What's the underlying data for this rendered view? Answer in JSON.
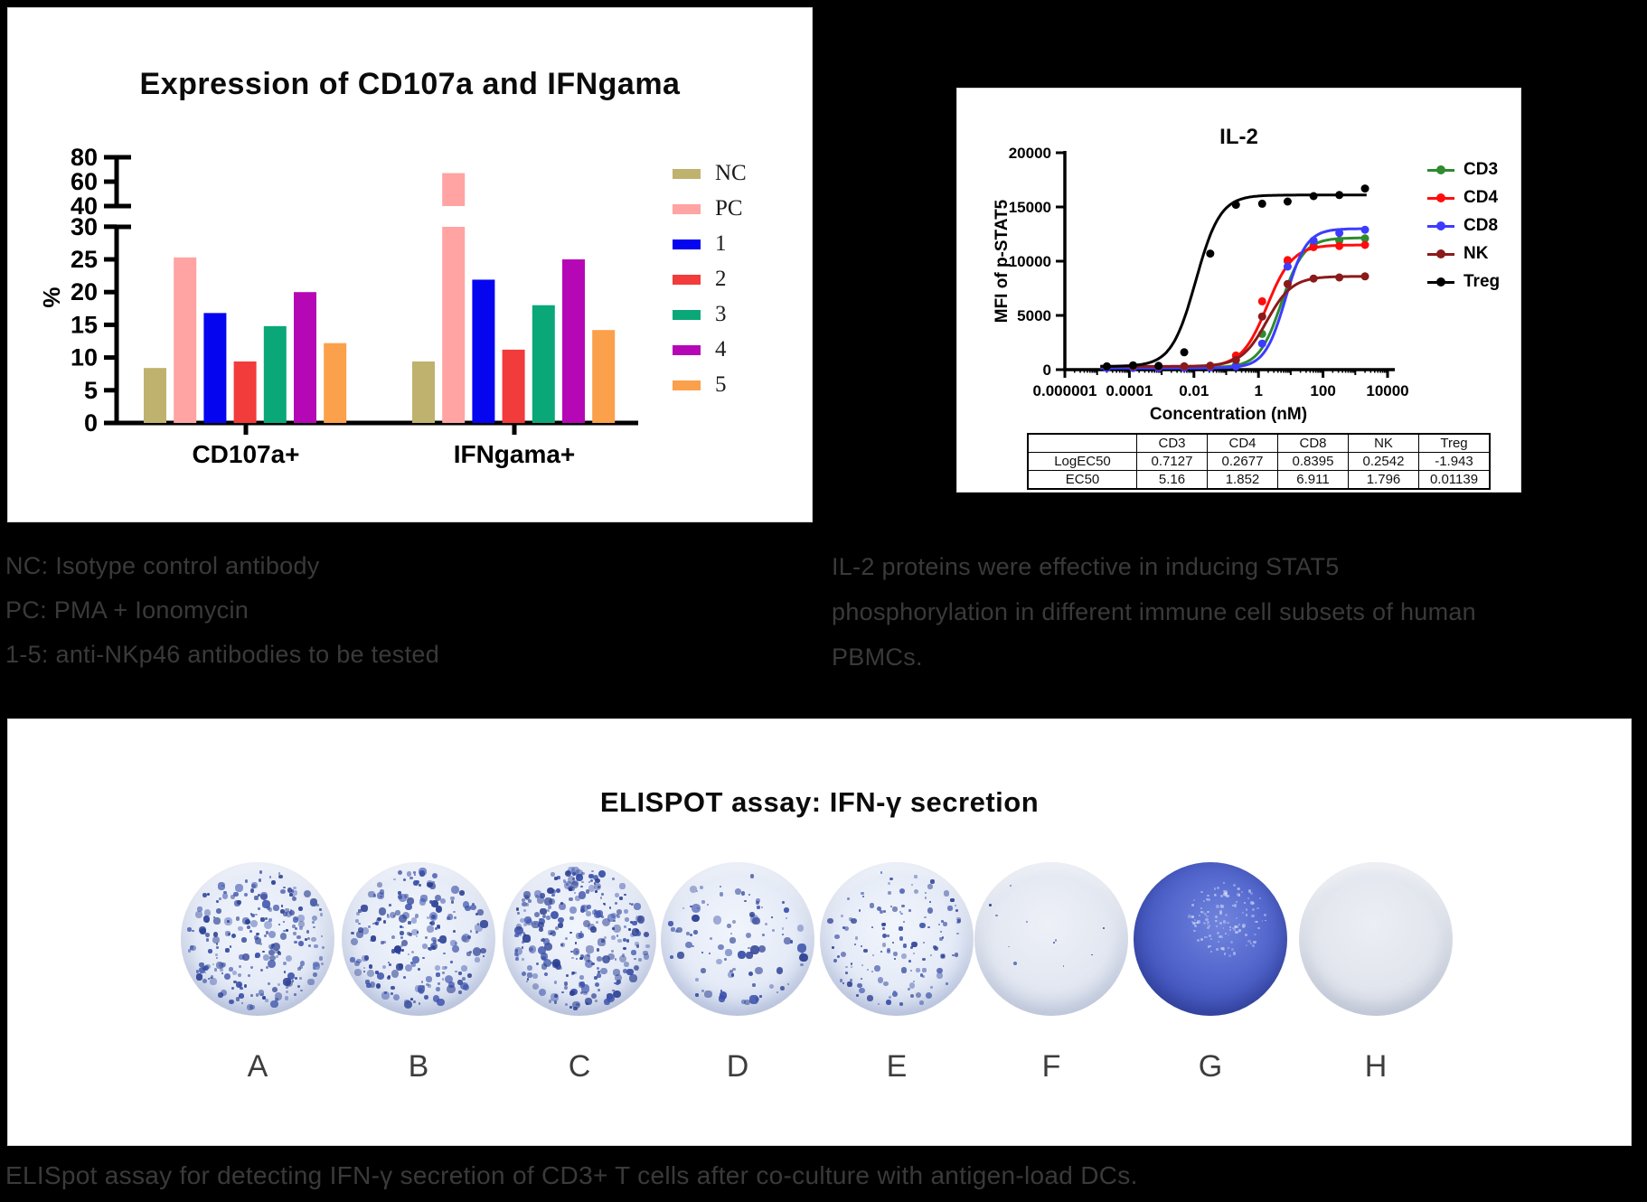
{
  "bar_panel": {
    "title": "Expression of CD107a and IFNgama"
  },
  "curve_panel": {
    "title": "IL-2"
  },
  "chart_data": [
    {
      "type": "bar",
      "title": "Expression of CD107a and IFNgama",
      "ylabel": "%",
      "yticks_lower": [
        0,
        5,
        10,
        15,
        20,
        25,
        30
      ],
      "axis_break": {
        "lower_max": 30,
        "upper_ticks": [
          40,
          60,
          80
        ]
      },
      "ylim": [
        0,
        80
      ],
      "grid": false,
      "legend_position": "right",
      "categories": [
        "CD107a+",
        "IFNgama+"
      ],
      "series": [
        {
          "name": "NC",
          "color": "#bfb26e",
          "values": [
            8.4,
            9.4
          ]
        },
        {
          "name": "PC",
          "color": "#ffa3a3",
          "values": [
            25.3,
            67.0
          ]
        },
        {
          "name": "1",
          "color": "#0505f0",
          "values": [
            16.8,
            21.9
          ]
        },
        {
          "name": "2",
          "color": "#f23b3b",
          "values": [
            9.4,
            11.2
          ]
        },
        {
          "name": "3",
          "color": "#0aa878",
          "values": [
            14.8,
            18.0
          ]
        },
        {
          "name": "4",
          "color": "#b607b6",
          "values": [
            20.0,
            25.0
          ]
        },
        {
          "name": "5",
          "color": "#fba04b",
          "values": [
            12.2,
            14.2
          ]
        }
      ]
    },
    {
      "type": "line",
      "title": "IL-2",
      "xlabel": "Concentration (nM)",
      "ylabel": "MFI of p-STAT5",
      "xscale": "log",
      "xlim": [
        1e-06,
        10000
      ],
      "ylim": [
        0,
        20000
      ],
      "yticks": [
        0,
        5000,
        10000,
        15000,
        20000
      ],
      "xtick_labels": [
        "0.000001",
        "0.0001",
        "0.01",
        "1",
        "100",
        "10000"
      ],
      "grid": false,
      "legend_position": "right",
      "series": [
        {
          "name": "CD3",
          "color": "#2e8b2e",
          "fit": {
            "b": 200,
            "t": 12150,
            "lec": 0.7127,
            "h": 1.25
          },
          "points": [
            [
              2e-05,
              200
            ],
            [
              0.00013,
              200
            ],
            [
              0.0008,
              210
            ],
            [
              0.005,
              220
            ],
            [
              0.032,
              260
            ],
            [
              0.2,
              400
            ],
            [
              1.3,
              3300
            ],
            [
              8,
              10000
            ],
            [
              51,
              11500
            ],
            [
              320,
              11900
            ],
            [
              2000,
              12100
            ]
          ]
        },
        {
          "name": "CD4",
          "color": "#ff0d0d",
          "fit": {
            "b": 250,
            "t": 11500,
            "lec": 0.2677,
            "h": 1.1
          },
          "points": [
            [
              2e-05,
              250
            ],
            [
              0.00013,
              250
            ],
            [
              0.0008,
              260
            ],
            [
              0.005,
              280
            ],
            [
              0.032,
              350
            ],
            [
              0.2,
              1300
            ],
            [
              1.3,
              6300
            ],
            [
              8,
              10100
            ],
            [
              51,
              11300
            ],
            [
              320,
              11400
            ],
            [
              2000,
              11500
            ]
          ]
        },
        {
          "name": "CD8",
          "color": "#3c3cff",
          "fit": {
            "b": 150,
            "t": 13000,
            "lec": 0.8395,
            "h": 1.35
          },
          "points": [
            [
              2e-05,
              150
            ],
            [
              0.00013,
              150
            ],
            [
              0.0008,
              160
            ],
            [
              0.005,
              170
            ],
            [
              0.032,
              210
            ],
            [
              0.2,
              300
            ],
            [
              1.3,
              2400
            ],
            [
              8,
              9500
            ],
            [
              51,
              11900
            ],
            [
              320,
              12600
            ],
            [
              2000,
              12900
            ]
          ]
        },
        {
          "name": "NK",
          "color": "#8b1a1a",
          "fit": {
            "b": 300,
            "t": 8600,
            "lec": 0.2542,
            "h": 1.1
          },
          "points": [
            [
              2e-05,
              300
            ],
            [
              0.00013,
              300
            ],
            [
              0.0008,
              300
            ],
            [
              0.005,
              310
            ],
            [
              0.032,
              360
            ],
            [
              0.2,
              900
            ],
            [
              1.3,
              4900
            ],
            [
              8,
              7900
            ],
            [
              51,
              8400
            ],
            [
              320,
              8500
            ],
            [
              2000,
              8600
            ]
          ]
        },
        {
          "name": "Treg",
          "color": "#000000",
          "fit": {
            "b": 300,
            "t": 16100,
            "lec": -1.943,
            "h": 1.15
          },
          "points": [
            [
              2e-05,
              300
            ],
            [
              0.00013,
              400
            ],
            [
              0.0008,
              350
            ],
            [
              0.005,
              1600
            ],
            [
              0.032,
              10700
            ],
            [
              0.2,
              15200
            ],
            [
              1.3,
              15300
            ],
            [
              8,
              15500
            ],
            [
              51,
              16000
            ],
            [
              320,
              16100
            ],
            [
              2000,
              16700
            ]
          ]
        }
      ]
    }
  ],
  "il2_table": {
    "headers": [
      "",
      "CD3",
      "CD4",
      "CD8",
      "NK",
      "Treg"
    ],
    "rows": [
      [
        "LogEC50",
        "0.7127",
        "0.2677",
        "0.8395",
        "0.2542",
        "-1.943"
      ],
      [
        "EC50",
        "5.16",
        "1.852",
        "6.911",
        "1.796",
        "0.01139"
      ]
    ]
  },
  "captions": {
    "left": [
      "NC: Isotype control antibody",
      "PC: PMA + Ionomycin",
      "1-5: anti-NKp46 antibodies to be tested"
    ],
    "right": [
      "IL-2 proteins were effective in inducing STAT5",
      "phosphorylation in different immune cell subsets of human",
      "PBMCs."
    ],
    "bottom": "ELISpot assay for detecting IFN-γ secretion of CD3+ T cells after co-culture with antigen-load DCs."
  },
  "elispot": {
    "title": "ELISPOT assay: IFN-γ secretion",
    "wells": [
      {
        "label": "A",
        "style": "spots",
        "spots": 240,
        "seed": 11,
        "min_s": 2.5,
        "var_s": 6.5
      },
      {
        "label": "B",
        "style": "spots",
        "spots": 215,
        "seed": 22,
        "min_s": 2.5,
        "var_s": 7.0
      },
      {
        "label": "C",
        "style": "spots",
        "spots": 285,
        "seed": 33,
        "min_s": 2.5,
        "var_s": 7.0
      },
      {
        "label": "D",
        "style": "spots",
        "spots": 95,
        "seed": 44,
        "min_s": 2.0,
        "var_s": 8.0
      },
      {
        "label": "E",
        "style": "spots",
        "spots": 135,
        "seed": 55,
        "min_s": 2.0,
        "var_s": 5.0
      },
      {
        "label": "F",
        "style": "light",
        "spots": 11,
        "seed": 66,
        "min_s": 1.5,
        "var_s": 3.5
      },
      {
        "label": "G",
        "style": "solid",
        "spots": 0,
        "speckles": 130,
        "seed": 77
      },
      {
        "label": "H",
        "style": "clean",
        "spots": 0,
        "seed": 88
      }
    ]
  }
}
